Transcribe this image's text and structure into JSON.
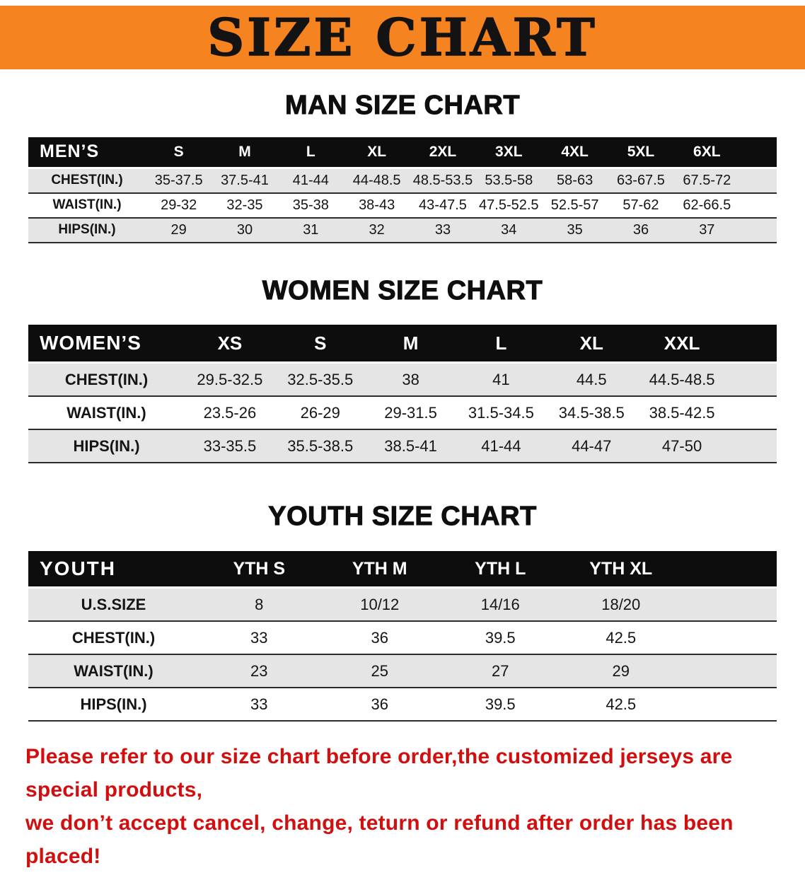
{
  "banner": {
    "title": "SIZE CHART"
  },
  "colors": {
    "banner_bg": "#f5831f",
    "header_bg": "#0d0d0d",
    "row_alt_bg": "#e5e5e5",
    "note_color": "#d10f0f"
  },
  "sections": [
    {
      "heading": "MAN SIZE CHART",
      "table": {
        "label": "MEN’S",
        "columns": [
          "S",
          "M",
          "L",
          "XL",
          "2XL",
          "3XL",
          "4XL",
          "5XL",
          "6XL"
        ],
        "rows": [
          {
            "label": "CHEST(IN.)",
            "values": [
              "35-37.5",
              "37.5-41",
              "41-44",
              "44-48.5",
              "48.5-53.5",
              "53.5-58",
              "58-63",
              "63-67.5",
              "67.5-72"
            ]
          },
          {
            "label": "WAIST(IN.)",
            "values": [
              "29-32",
              "32-35",
              "35-38",
              "38-43",
              "43-47.5",
              "47.5-52.5",
              "52.5-57",
              "57-62",
              "62-66.5"
            ]
          },
          {
            "label": "HIPS(IN.)",
            "values": [
              "29",
              "30",
              "31",
              "32",
              "33",
              "34",
              "35",
              "36",
              "37"
            ]
          }
        ]
      }
    },
    {
      "heading": "WOMEN SIZE CHART",
      "table": {
        "label": "WOMEN’S",
        "columns": [
          "XS",
          "S",
          "M",
          "L",
          "XL",
          "XXL"
        ],
        "rows": [
          {
            "label": "CHEST(IN.)",
            "values": [
              "29.5-32.5",
              "32.5-35.5",
              "38",
              "41",
              "44.5",
              "44.5-48.5"
            ]
          },
          {
            "label": "WAIST(IN.)",
            "values": [
              "23.5-26",
              "26-29",
              "29-31.5",
              "31.5-34.5",
              "34.5-38.5",
              "38.5-42.5"
            ]
          },
          {
            "label": "HIPS(IN.)",
            "values": [
              "33-35.5",
              "35.5-38.5",
              "38.5-41",
              "41-44",
              "44-47",
              "47-50"
            ]
          }
        ]
      }
    },
    {
      "heading": "YOUTH SIZE CHART",
      "table": {
        "label": "YOUTH",
        "columns": [
          "YTH S",
          "YTH M",
          "YTH L",
          "YTH XL"
        ],
        "rows": [
          {
            "label": "U.S.SIZE",
            "values": [
              "8",
              "10/12",
              "14/16",
              "18/20"
            ]
          },
          {
            "label": "CHEST(IN.)",
            "values": [
              "33",
              "36",
              "39.5",
              "42.5"
            ]
          },
          {
            "label": "WAIST(IN.)",
            "values": [
              "23",
              "25",
              "27",
              "29"
            ]
          },
          {
            "label": "HIPS(IN.)",
            "values": [
              "33",
              "36",
              "39.5",
              "42.5"
            ]
          }
        ]
      }
    }
  ],
  "note": {
    "line1": "Please refer to our size chart before order,the customized jerseys are special products,",
    "line2": "we don’t accept cancel, change, teturn or refund after order has been placed!"
  }
}
